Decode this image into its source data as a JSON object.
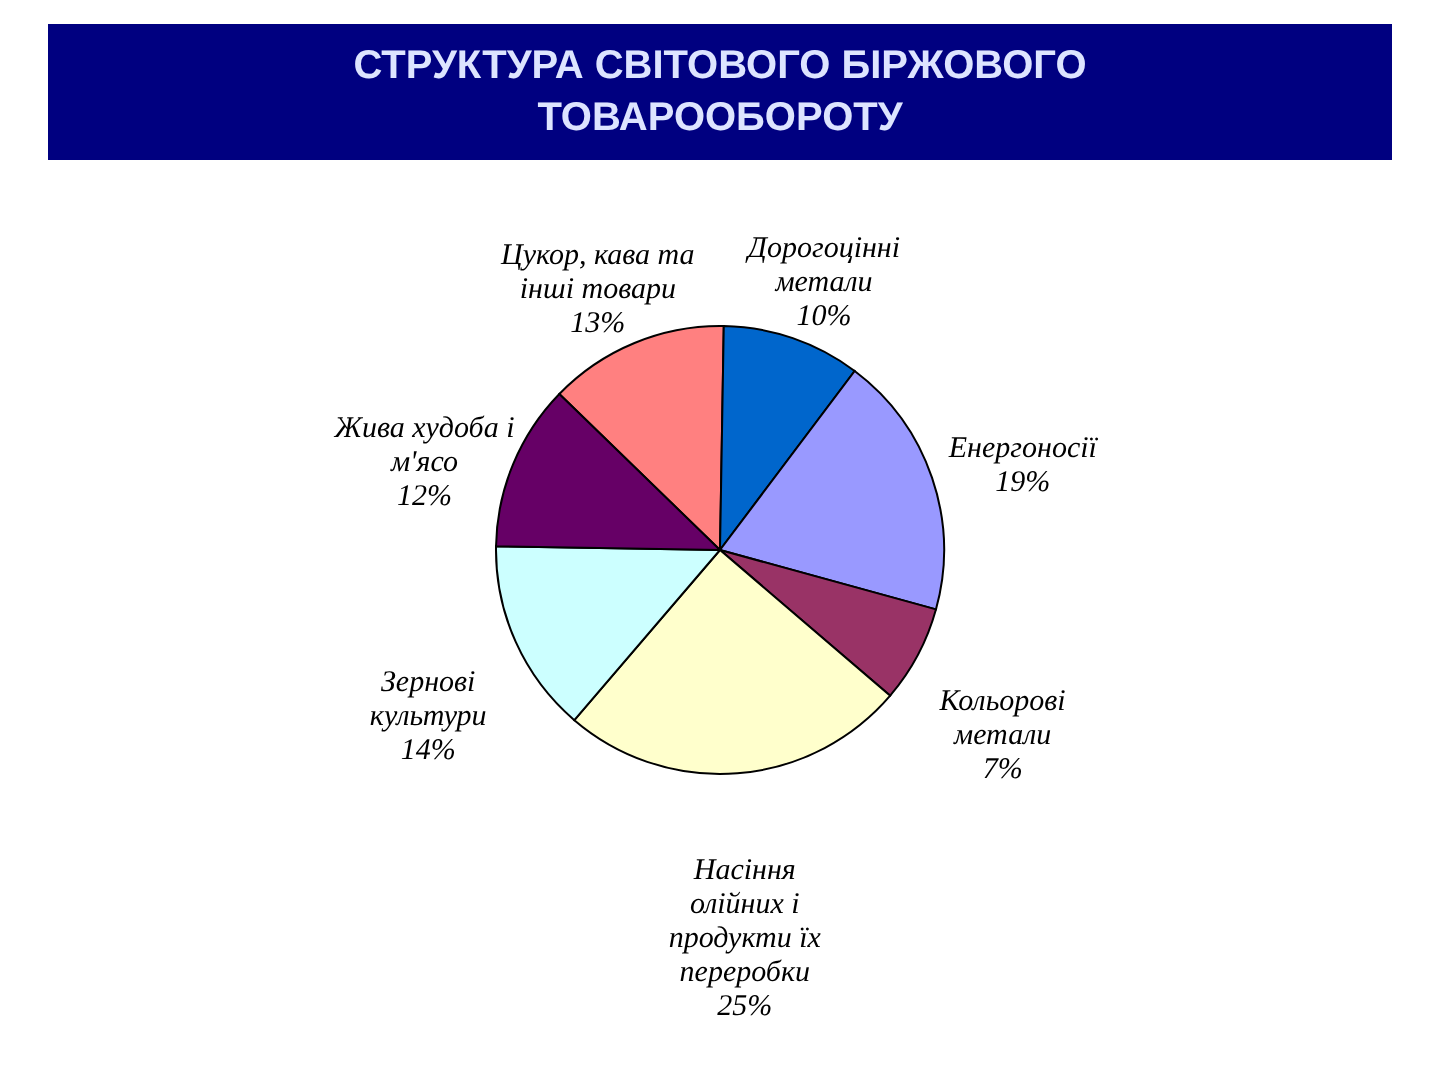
{
  "chart_data": {
    "type": "pie",
    "title": "СТРУКТУРА СВІТОВОГО БІРЖОВОГО ТОВАРООБОРОТУ",
    "categories": [
      "Цукор, кава та інші товари",
      "Дорогоцінні метали",
      "Енергоносії",
      "Кольорові метали",
      "Насіння олійних і продукти їх переробки",
      "Зернові культури",
      "Жива худоба і м'ясо"
    ],
    "values": [
      13,
      10,
      19,
      7,
      25,
      14,
      12
    ],
    "colors": [
      "#ff8080",
      "#0066cc",
      "#9999ff",
      "#993366",
      "#ffffcc",
      "#ccffff",
      "#660066"
    ],
    "value_labels": [
      "13%",
      "10%",
      "19%",
      "7%",
      "25%",
      "14%",
      "12%"
    ],
    "legend": false
  }
}
